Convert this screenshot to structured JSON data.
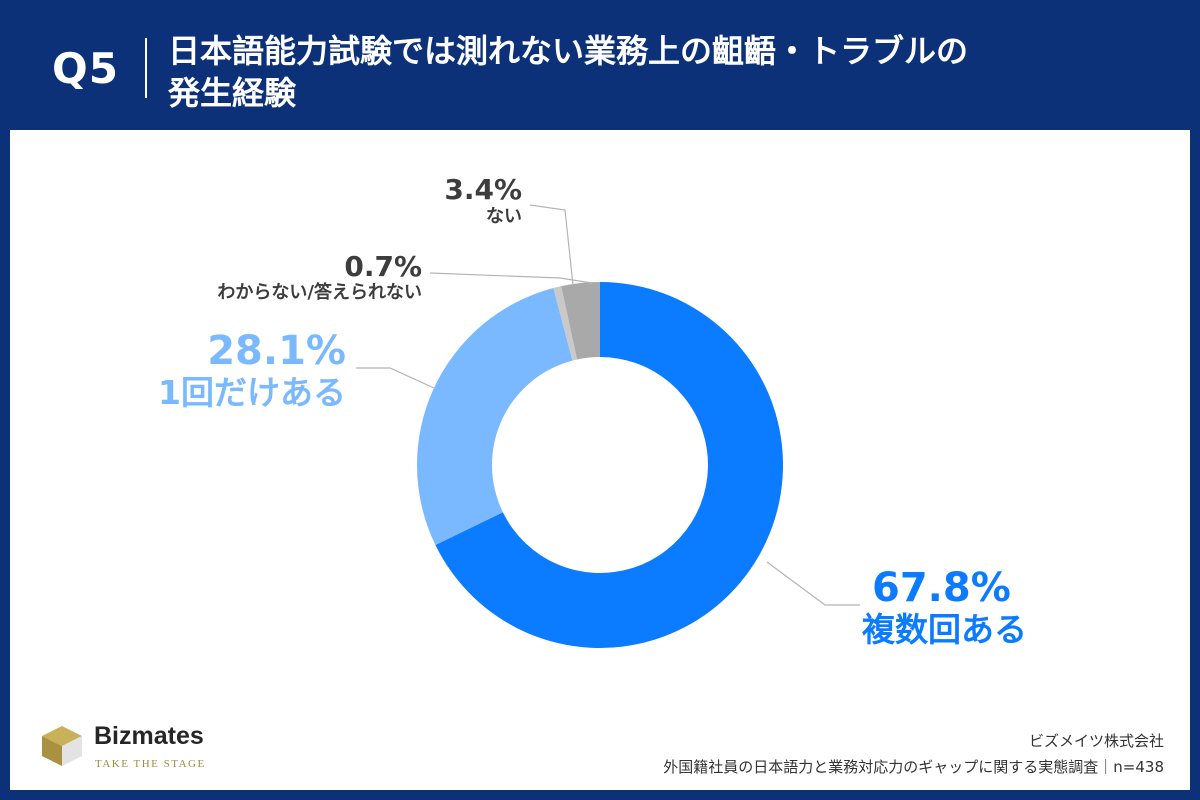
{
  "header": {
    "question": "Q5",
    "title": "日本語能力試験では測れない業務上の齟齬・トラブルの\n発生経験"
  },
  "chart_data": {
    "type": "pie",
    "donut": true,
    "slices": [
      {
        "pct_label": "67.8%",
        "label": "複数回ある",
        "value": 67.8,
        "color": "#0b7cff"
      },
      {
        "pct_label": "28.1%",
        "label": "1回だけある",
        "value": 28.1,
        "color": "#7ab9ff"
      },
      {
        "pct_label": "0.7%",
        "label": "わからない/答えられない",
        "value": 0.7,
        "color": "#c9c9c9"
      },
      {
        "pct_label": "3.4%",
        "label": "ない",
        "value": 3.4,
        "color": "#a9a9a9"
      }
    ]
  },
  "brand": {
    "name": "Bizmates",
    "tagline": "TAKE THE STAGE"
  },
  "source": {
    "company": "ビズメイツ株式会社",
    "survey": "外国籍社員の日本語力と業務対応力のギャップに関する実態調査｜n=438"
  }
}
